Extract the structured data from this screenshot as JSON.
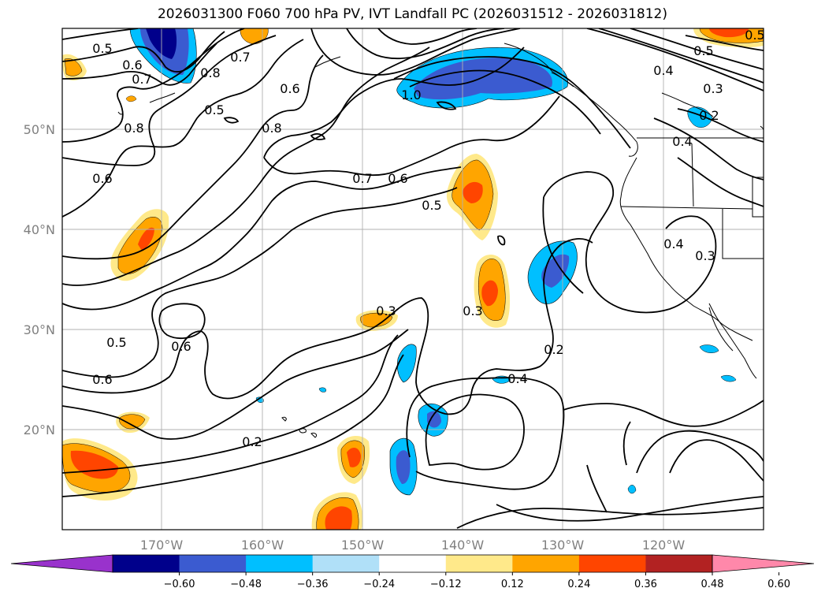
{
  "title": "2026031300 F060 700 hPa PV, IVT Landfall PC (2026031512 - 2026031812)",
  "map": {
    "lat_labels": [
      "50°N",
      "40°N",
      "30°N",
      "20°N"
    ],
    "lon_labels": [
      "170°W",
      "160°W",
      "150°W",
      "140°W",
      "130°W",
      "120°W"
    ],
    "contour_labels": [
      {
        "text": "0.5",
        "name": "contour-label-0-5-a"
      },
      {
        "text": "0.6",
        "name": "contour-label-0-6-a"
      },
      {
        "text": "0.7",
        "name": "contour-label-0-7-a"
      },
      {
        "text": "0.8",
        "name": "contour-label-0-8-a"
      },
      {
        "text": "0.7",
        "name": "contour-label-0-7-b"
      },
      {
        "text": "0.5",
        "name": "contour-label-0-5-b"
      },
      {
        "text": "0.6",
        "name": "contour-label-0-6-b"
      },
      {
        "text": "0.8",
        "name": "contour-label-0-8-b"
      },
      {
        "text": "0.8",
        "name": "contour-label-0-8-c"
      },
      {
        "text": "1.0",
        "name": "contour-label-1-0"
      },
      {
        "text": "0.5",
        "name": "contour-label-0-5-c"
      },
      {
        "text": "0.4",
        "name": "contour-label-0-4-a"
      },
      {
        "text": "0.3",
        "name": "contour-label-0-3-a"
      },
      {
        "text": "0.2",
        "name": "contour-label-0-2-a"
      },
      {
        "text": "0.4",
        "name": "contour-label-0-4-b"
      },
      {
        "text": "0.6",
        "name": "contour-label-0-6-c"
      },
      {
        "text": "0.7",
        "name": "contour-label-0-7-c"
      },
      {
        "text": "0.6",
        "name": "contour-label-0-6-d"
      },
      {
        "text": "0.5",
        "name": "contour-label-0-5-d"
      },
      {
        "text": "0.4",
        "name": "contour-label-0-4-c"
      },
      {
        "text": "0.3",
        "name": "contour-label-0-3-b"
      },
      {
        "text": "0.3",
        "name": "contour-label-0-3-c"
      },
      {
        "text": "0.3",
        "name": "contour-label-0-3-d"
      },
      {
        "text": "0.5",
        "name": "contour-label-0-5-e"
      },
      {
        "text": "0.6",
        "name": "contour-label-0-6-e"
      },
      {
        "text": "0.6",
        "name": "contour-label-0-6-f"
      },
      {
        "text": "0.2",
        "name": "contour-label-0-2-b"
      },
      {
        "text": "0.4",
        "name": "contour-label-0-4-d"
      },
      {
        "text": "0.2",
        "name": "contour-label-0-2-c"
      },
      {
        "text": "0.5",
        "name": "contour-label-0-5-f"
      }
    ]
  },
  "colorbar": {
    "tick_labels": [
      "−0.60",
      "−0.48",
      "−0.36",
      "−0.24",
      "−0.12",
      "0.12",
      "0.24",
      "0.36",
      "0.48",
      "0.60"
    ],
    "colors": [
      "#9932cc",
      "#00008b",
      "#3b5bd0",
      "#00bfff",
      "#b0e0f8",
      "#ffffff",
      "#ffe98a",
      "#ffa500",
      "#ff4500",
      "#b22222",
      "#ff88aa"
    ]
  }
}
